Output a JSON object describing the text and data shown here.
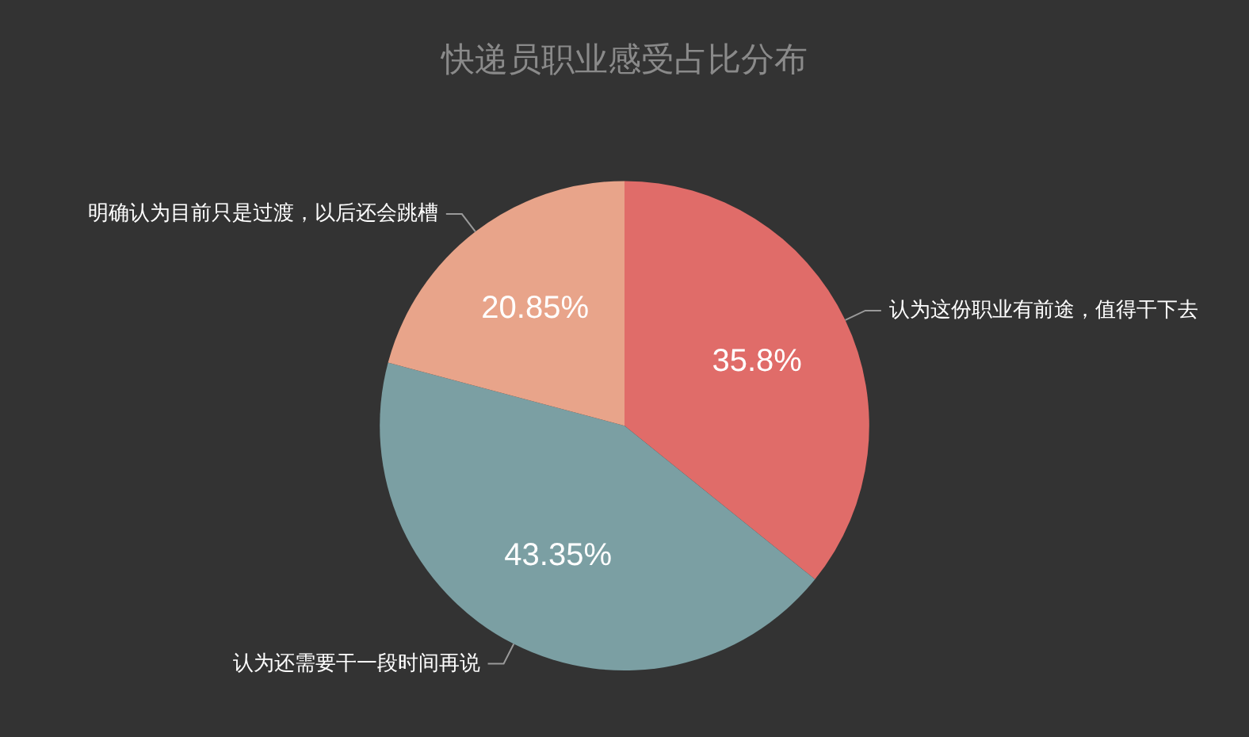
{
  "chart_data": {
    "type": "pie",
    "title": "快递员职业感受占比分布",
    "categories": [
      "认为这份职业有前途，值得干下去",
      "认为还需要干一段时间再说",
      "明确认为目前只是过渡，以后还会跳槽"
    ],
    "values": [
      35.8,
      43.35,
      20.85
    ],
    "colors": [
      "#e06c69",
      "#7b9fa3",
      "#e8a48a"
    ],
    "value_labels": [
      "35.8%",
      "43.35%",
      "20.85%"
    ],
    "legend": false
  }
}
